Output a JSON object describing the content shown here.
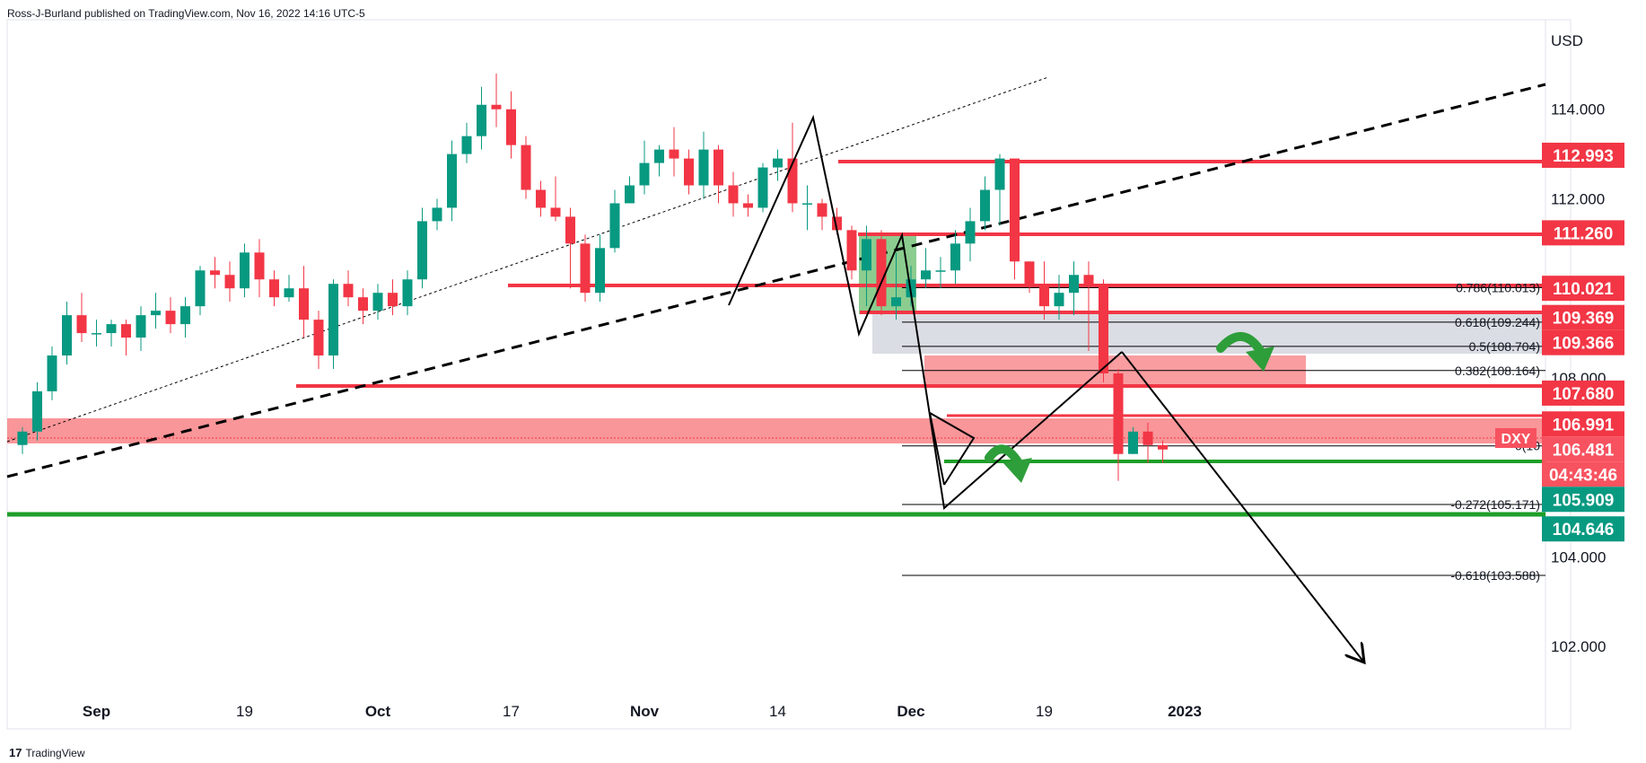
{
  "header": {
    "publish_text": "Ross-J-Burland published on TradingView.com, Nov 16, 2022 14:16 UTC-5"
  },
  "footer": {
    "logo_glyph": "17",
    "brand": "TradingView"
  },
  "chart_data": {
    "type": "candlestick",
    "symbol": "DXY",
    "currency": "USD",
    "y_axis": {
      "min": 100.8,
      "max": 116.0,
      "ticks": [
        "114.000",
        "112.000",
        "110.000",
        "108.000",
        "106.000",
        "104.000",
        "102.000"
      ],
      "tick_values": [
        114,
        112,
        110,
        108,
        106,
        104,
        102
      ]
    },
    "x_axis": {
      "labels": [
        "Sep",
        "19",
        "Oct",
        "17",
        "Nov",
        "14",
        "Dec",
        "19",
        "2023"
      ],
      "bold": [
        "Sep",
        "Oct",
        "Nov",
        "Dec",
        "2023"
      ],
      "label_index": [
        5,
        15,
        24,
        33,
        42,
        51,
        60,
        69,
        78
      ]
    },
    "candles": [
      [
        106.5,
        106.8,
        106.3,
        106.9
      ],
      [
        106.8,
        107.7,
        106.6,
        107.9
      ],
      [
        107.7,
        108.5,
        107.5,
        108.7
      ],
      [
        108.5,
        109.4,
        108.3,
        109.7
      ],
      [
        109.4,
        109.0,
        108.8,
        109.9
      ],
      [
        109.0,
        109.0,
        108.7,
        109.3
      ],
      [
        109.0,
        109.2,
        108.7,
        109.3
      ],
      [
        109.2,
        108.9,
        108.5,
        109.3
      ],
      [
        108.9,
        109.4,
        108.6,
        109.6
      ],
      [
        109.4,
        109.5,
        109.1,
        109.9
      ],
      [
        109.5,
        109.2,
        109.0,
        109.8
      ],
      [
        109.2,
        109.6,
        108.9,
        109.8
      ],
      [
        109.6,
        110.4,
        109.4,
        110.5
      ],
      [
        110.4,
        110.3,
        110.0,
        110.7
      ],
      [
        110.3,
        110.0,
        109.7,
        110.6
      ],
      [
        110.0,
        110.8,
        109.8,
        111.0
      ],
      [
        110.8,
        110.2,
        109.8,
        111.1
      ],
      [
        110.2,
        109.8,
        109.6,
        110.4
      ],
      [
        109.8,
        110.0,
        109.7,
        110.3
      ],
      [
        110.0,
        109.3,
        108.9,
        110.5
      ],
      [
        109.3,
        108.5,
        108.2,
        109.5
      ],
      [
        108.5,
        110.1,
        108.2,
        110.2
      ],
      [
        110.1,
        109.8,
        109.6,
        110.4
      ],
      [
        109.8,
        109.5,
        109.2,
        110.0
      ],
      [
        109.5,
        109.9,
        109.3,
        110.1
      ],
      [
        109.9,
        109.6,
        109.4,
        110.2
      ],
      [
        109.6,
        110.2,
        109.4,
        110.4
      ],
      [
        110.2,
        111.5,
        110.0,
        111.8
      ],
      [
        111.5,
        111.8,
        111.3,
        112.0
      ],
      [
        111.8,
        113.0,
        111.5,
        113.3
      ],
      [
        113.0,
        113.4,
        112.8,
        113.7
      ],
      [
        113.4,
        114.1,
        113.1,
        114.5
      ],
      [
        114.1,
        114.0,
        113.6,
        114.8
      ],
      [
        114.0,
        113.2,
        112.9,
        114.4
      ],
      [
        113.2,
        112.2,
        112.0,
        113.4
      ],
      [
        112.2,
        111.8,
        111.6,
        112.4
      ],
      [
        111.8,
        111.6,
        111.5,
        112.5
      ],
      [
        111.6,
        111.0,
        110.0,
        111.8
      ],
      [
        111.0,
        109.9,
        109.7,
        111.2
      ],
      [
        109.9,
        110.9,
        109.7,
        111.2
      ],
      [
        110.9,
        111.9,
        110.8,
        112.2
      ],
      [
        111.9,
        112.3,
        111.9,
        112.5
      ],
      [
        112.3,
        112.8,
        112.1,
        113.3
      ],
      [
        112.8,
        113.1,
        112.5,
        113.2
      ],
      [
        113.1,
        112.9,
        112.5,
        113.6
      ],
      [
        112.9,
        112.3,
        112.1,
        113.1
      ],
      [
        112.3,
        113.1,
        112.0,
        113.5
      ],
      [
        113.1,
        112.3,
        111.9,
        113.2
      ],
      [
        112.3,
        111.9,
        111.6,
        112.6
      ],
      [
        111.9,
        111.8,
        111.6,
        112.1
      ],
      [
        111.8,
        112.7,
        111.7,
        112.8
      ],
      [
        112.7,
        112.9,
        112.4,
        113.1
      ],
      [
        112.9,
        111.9,
        111.7,
        113.7
      ],
      [
        111.9,
        111.9,
        111.3,
        112.3
      ],
      [
        111.9,
        111.6,
        111.3,
        112.0
      ],
      [
        111.6,
        111.3,
        111.2,
        111.8
      ],
      [
        111.3,
        110.4,
        110.2,
        111.4
      ],
      [
        110.4,
        111.1,
        109.6,
        111.4
      ],
      [
        111.1,
        109.6,
        109.4,
        111.3
      ],
      [
        109.6,
        109.8,
        109.3,
        110.8
      ],
      [
        109.8,
        110.2,
        109.6,
        110.5
      ],
      [
        110.2,
        110.4,
        110.0,
        110.9
      ],
      [
        110.4,
        110.4,
        110.0,
        110.7
      ],
      [
        110.4,
        111.0,
        110.1,
        111.3
      ],
      [
        111.0,
        111.5,
        110.6,
        111.8
      ],
      [
        111.5,
        112.2,
        111.3,
        112.5
      ],
      [
        112.2,
        112.9,
        111.4,
        113.0
      ],
      [
        112.9,
        110.6,
        110.2,
        112.9
      ],
      [
        110.6,
        110.1,
        109.9,
        110.6
      ],
      [
        110.1,
        109.6,
        109.3,
        110.6
      ],
      [
        109.6,
        109.9,
        109.3,
        110.3
      ],
      [
        109.9,
        110.3,
        109.4,
        110.6
      ],
      [
        110.3,
        110.1,
        108.6,
        110.6
      ],
      [
        110.1,
        108.1,
        107.9,
        110.2
      ],
      [
        108.1,
        106.3,
        105.7,
        108.2
      ],
      [
        106.3,
        106.8,
        106.3,
        106.9
      ],
      [
        106.8,
        106.5,
        106.1,
        107.0
      ],
      [
        106.5,
        106.4,
        106.1,
        106.6
      ]
    ],
    "candle_x_index": [
      0,
      1,
      2,
      3,
      4,
      5,
      6,
      7,
      8,
      9,
      10,
      11,
      12,
      13,
      14,
      15,
      16,
      17,
      18,
      19,
      20,
      21,
      22,
      23,
      24,
      25,
      26,
      27,
      28,
      29,
      30,
      31,
      32,
      33,
      34,
      35,
      36,
      37,
      38,
      39,
      40,
      41,
      42,
      43,
      44,
      45,
      46,
      47,
      48,
      49,
      50,
      51,
      52,
      53,
      54,
      55,
      56,
      57,
      58,
      59,
      60,
      61,
      62,
      63,
      64,
      65,
      66,
      67,
      68,
      69,
      70,
      71,
      72,
      73,
      74,
      75,
      76,
      77
    ],
    "price_labels": [
      {
        "text": "112.993",
        "value": 112.993,
        "color": "#f23645"
      },
      {
        "text": "111.260",
        "value": 111.26,
        "color": "#f23645"
      },
      {
        "text": "110.021",
        "value": 110.021,
        "color": "#f23645"
      },
      {
        "text": "109.369",
        "value": 109.369,
        "color": "#f23645"
      },
      {
        "text": "109.366",
        "value": 109.366,
        "color": "#f23645"
      },
      {
        "text": "107.680",
        "value": 107.68,
        "color": "#f23645"
      },
      {
        "text": "106.991",
        "value": 106.991,
        "color": "#f23645"
      },
      {
        "text": "106.481",
        "value": 106.481,
        "color": "#f7525f"
      },
      {
        "text": "04:43:46",
        "value": 106.481,
        "color": "#f7525f"
      },
      {
        "text": "105.909",
        "value": 105.909,
        "color": "#089981"
      },
      {
        "text": "104.646",
        "value": 104.646,
        "color": "#089981"
      }
    ],
    "symbol_tag": "DXY",
    "fib_levels": [
      {
        "text": "0.786(110.013)",
        "value": 110.013
      },
      {
        "text": "0.618(109.244)",
        "value": 109.244
      },
      {
        "text": "0.5(108.704)",
        "value": 108.704
      },
      {
        "text": "0.382(108.164)",
        "value": 108.164
      },
      {
        "text": "0(10",
        "value": 106.481
      },
      {
        "text": "-0.272(105.171)",
        "value": 105.171
      },
      {
        "text": "-0.618(103.588)",
        "value": 103.588
      }
    ],
    "colors": {
      "up": "#089981",
      "down": "#f23645",
      "support": "#1e9e28",
      "resistance": "#f23645",
      "zone": "#f77c80",
      "fib_zone": "#b2b5be"
    }
  }
}
